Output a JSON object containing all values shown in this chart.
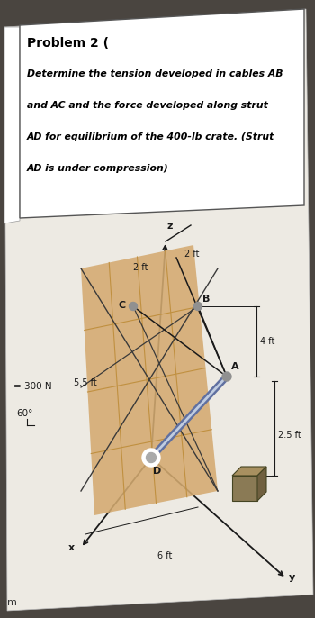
{
  "bg_color": "#4a4540",
  "paper_color": "#edeae3",
  "title": "Problem 2 (",
  "problem_text_line1": "Determine the tension developed in cables AB",
  "problem_text_line2": "and AC and the force developed along strut",
  "problem_text_line3": "AD for equilibrium of the 400-lb crate. (Strut",
  "problem_text_line4": "AD is under compression)",
  "panel_color": "#d4aa70",
  "label_z": "z",
  "label_x": "x",
  "label_y": "y",
  "label_A": "A",
  "label_B": "B",
  "label_C": "C",
  "label_D": "D",
  "dim_2ft_top": "2 ft",
  "dim_2ft_left": "2 ft",
  "dim_4ft": "4 ft",
  "dim_55ft": "5.5 ft",
  "dim_6ft": "6 ft",
  "dim_25ft": "2.5 ft",
  "label_300N": "= 300 N",
  "label_60": "60°",
  "strut_color_outer": "#6070a0",
  "strut_color_inner": "#c0cce0",
  "line_color": "#1a1a1a",
  "crate_color_front": "#8a7a55",
  "crate_color_top": "#a89060",
  "crate_color_right": "#706040",
  "node_color": "#909090",
  "grid_color": "#c09040"
}
